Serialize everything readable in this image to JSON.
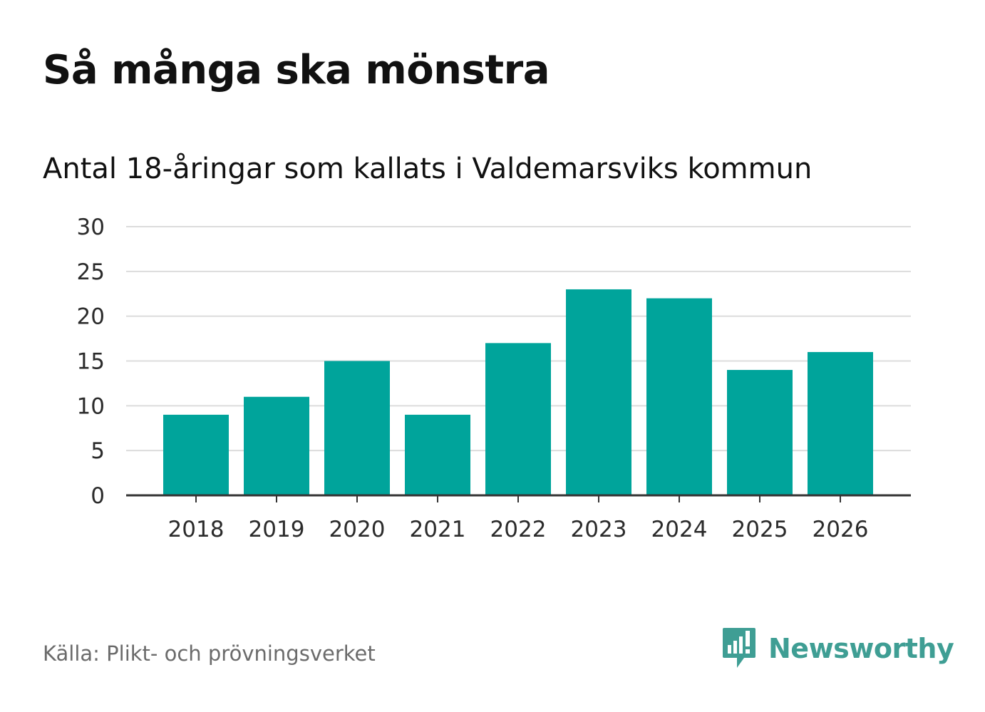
{
  "chart_data": {
    "type": "bar",
    "title": "Så många ska mönstra",
    "subtitle": "Antal 18-åringar som kallats i Valdemarsviks kommun",
    "categories": [
      "2018",
      "2019",
      "2020",
      "2021",
      "2022",
      "2023",
      "2024",
      "2025",
      "2026"
    ],
    "values": [
      9,
      11,
      15,
      9,
      17,
      23,
      22,
      14,
      16
    ],
    "xlabel": "",
    "ylabel": "",
    "ylim": [
      0,
      30
    ],
    "yticks": [
      "0",
      "5",
      "10",
      "15",
      "20",
      "25",
      "30"
    ],
    "grid": true,
    "bar_color": "#00a49b"
  },
  "footer": {
    "source": "Källa: Plikt- och prövningsverket",
    "brand": "Newsworthy",
    "brand_icon": "newsworthy-logo-icon",
    "brand_color": "#3f9e94"
  }
}
